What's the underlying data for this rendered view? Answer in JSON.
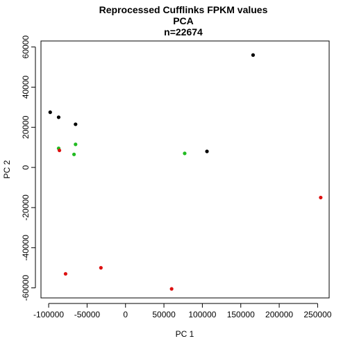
{
  "chart_data": {
    "type": "scatter",
    "title_lines": [
      "Reprocessed Cufflinks FPKM values",
      "PCA",
      "n=22674"
    ],
    "xlabel": "PC 1",
    "ylabel": "PC 2",
    "xlim": [
      -110000,
      265000
    ],
    "ylim": [
      -65000,
      63000
    ],
    "x_ticks": [
      -100000,
      -50000,
      0,
      50000,
      100000,
      150000,
      200000,
      250000
    ],
    "x_tick_labels": [
      "-100000",
      "-50000",
      "0",
      "50000",
      "100000",
      "150000",
      "200000",
      "250000"
    ],
    "y_ticks": [
      -60000,
      -40000,
      -20000,
      0,
      20000,
      40000,
      60000
    ],
    "y_tick_labels": [
      "-60000",
      "-40000",
      "-20000",
      "0",
      "20000",
      "40000",
      "60000"
    ],
    "grid": false,
    "legend": "none",
    "colors": {
      "black": "#000000",
      "green": "#22bb22",
      "red": "#dd1111"
    },
    "series": [
      {
        "color": "#000000",
        "points": [
          {
            "x": -98000,
            "y": 27500
          },
          {
            "x": -87000,
            "y": 25000
          },
          {
            "x": -65000,
            "y": 21500
          },
          {
            "x": 106000,
            "y": 8000
          },
          {
            "x": 166000,
            "y": 56000
          }
        ]
      },
      {
        "color": "#22bb22",
        "points": [
          {
            "x": -87000,
            "y": 9500
          },
          {
            "x": -65000,
            "y": 11500
          },
          {
            "x": -67000,
            "y": 6500
          },
          {
            "x": 77000,
            "y": 7000
          }
        ]
      },
      {
        "color": "#dd1111",
        "points": [
          {
            "x": -86000,
            "y": 8500
          },
          {
            "x": -78000,
            "y": -53000
          },
          {
            "x": -32000,
            "y": -50000
          },
          {
            "x": 60000,
            "y": -60500
          },
          {
            "x": 254000,
            "y": -15000
          }
        ]
      }
    ]
  }
}
